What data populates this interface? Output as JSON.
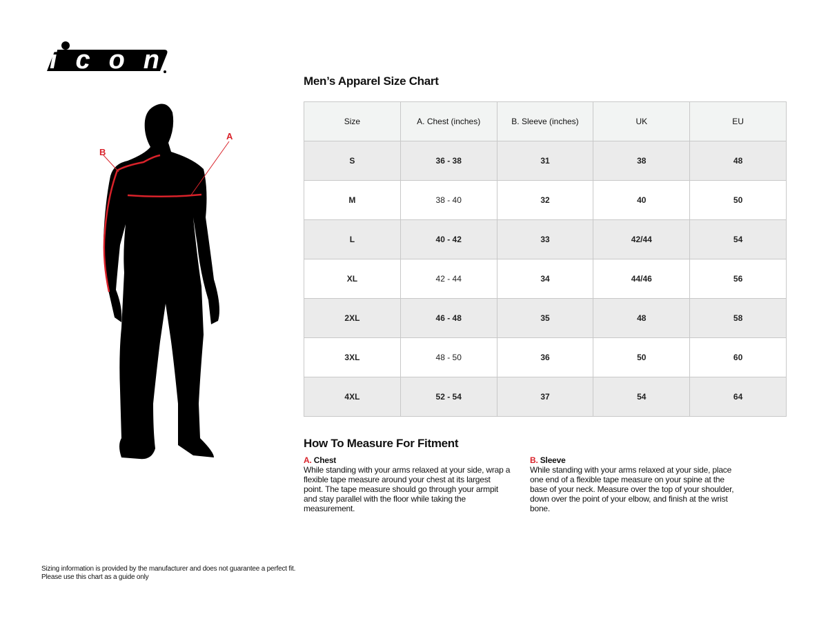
{
  "brand": {
    "logo_text": "icon"
  },
  "figure": {
    "label_a": "A",
    "label_b": "B",
    "accent": "#d9222a"
  },
  "chart": {
    "title": "Men’s Apparel Size Chart",
    "columns": [
      "Size",
      "A. Chest (inches)",
      "B. Sleeve (inches)",
      "UK",
      "EU"
    ],
    "rows": [
      [
        "S",
        "36 - 38",
        "31",
        "38",
        "48"
      ],
      [
        "M",
        "38 - 40",
        "32",
        "40",
        "50"
      ],
      [
        "L",
        "40 - 42",
        "33",
        "42/44",
        "54"
      ],
      [
        "XL",
        "42 - 44",
        "34",
        "44/46",
        "56"
      ],
      [
        "2XL",
        "46 - 48",
        "35",
        "48",
        "58"
      ],
      [
        "3XL",
        "48 - 50",
        "36",
        "50",
        "60"
      ],
      [
        "4XL",
        "52 - 54",
        "37",
        "54",
        "64"
      ]
    ]
  },
  "howto": {
    "title": "How To Measure For Fitment",
    "chest": {
      "letter": "A.",
      "label": "Chest",
      "text": "While standing with your arms relaxed at your side, wrap a flexible tape measure around your chest at its largest point. The tape measure should go through your armpit and stay parallel with the floor while taking the measurement."
    },
    "sleeve": {
      "letter": "B.",
      "label": "Sleeve",
      "text": "While standing with your arms relaxed at your side, place one end of a flexible tape measure on your spine at the base of your neck. Measure over the top of your shoulder, down over the point of your elbow, and finish at the wrist bone."
    }
  },
  "disclaimer": {
    "line1": "Sizing information is provided by the manufacturer and does not guarantee a perfect fit.",
    "line2": "Please use this chart as a guide only"
  }
}
